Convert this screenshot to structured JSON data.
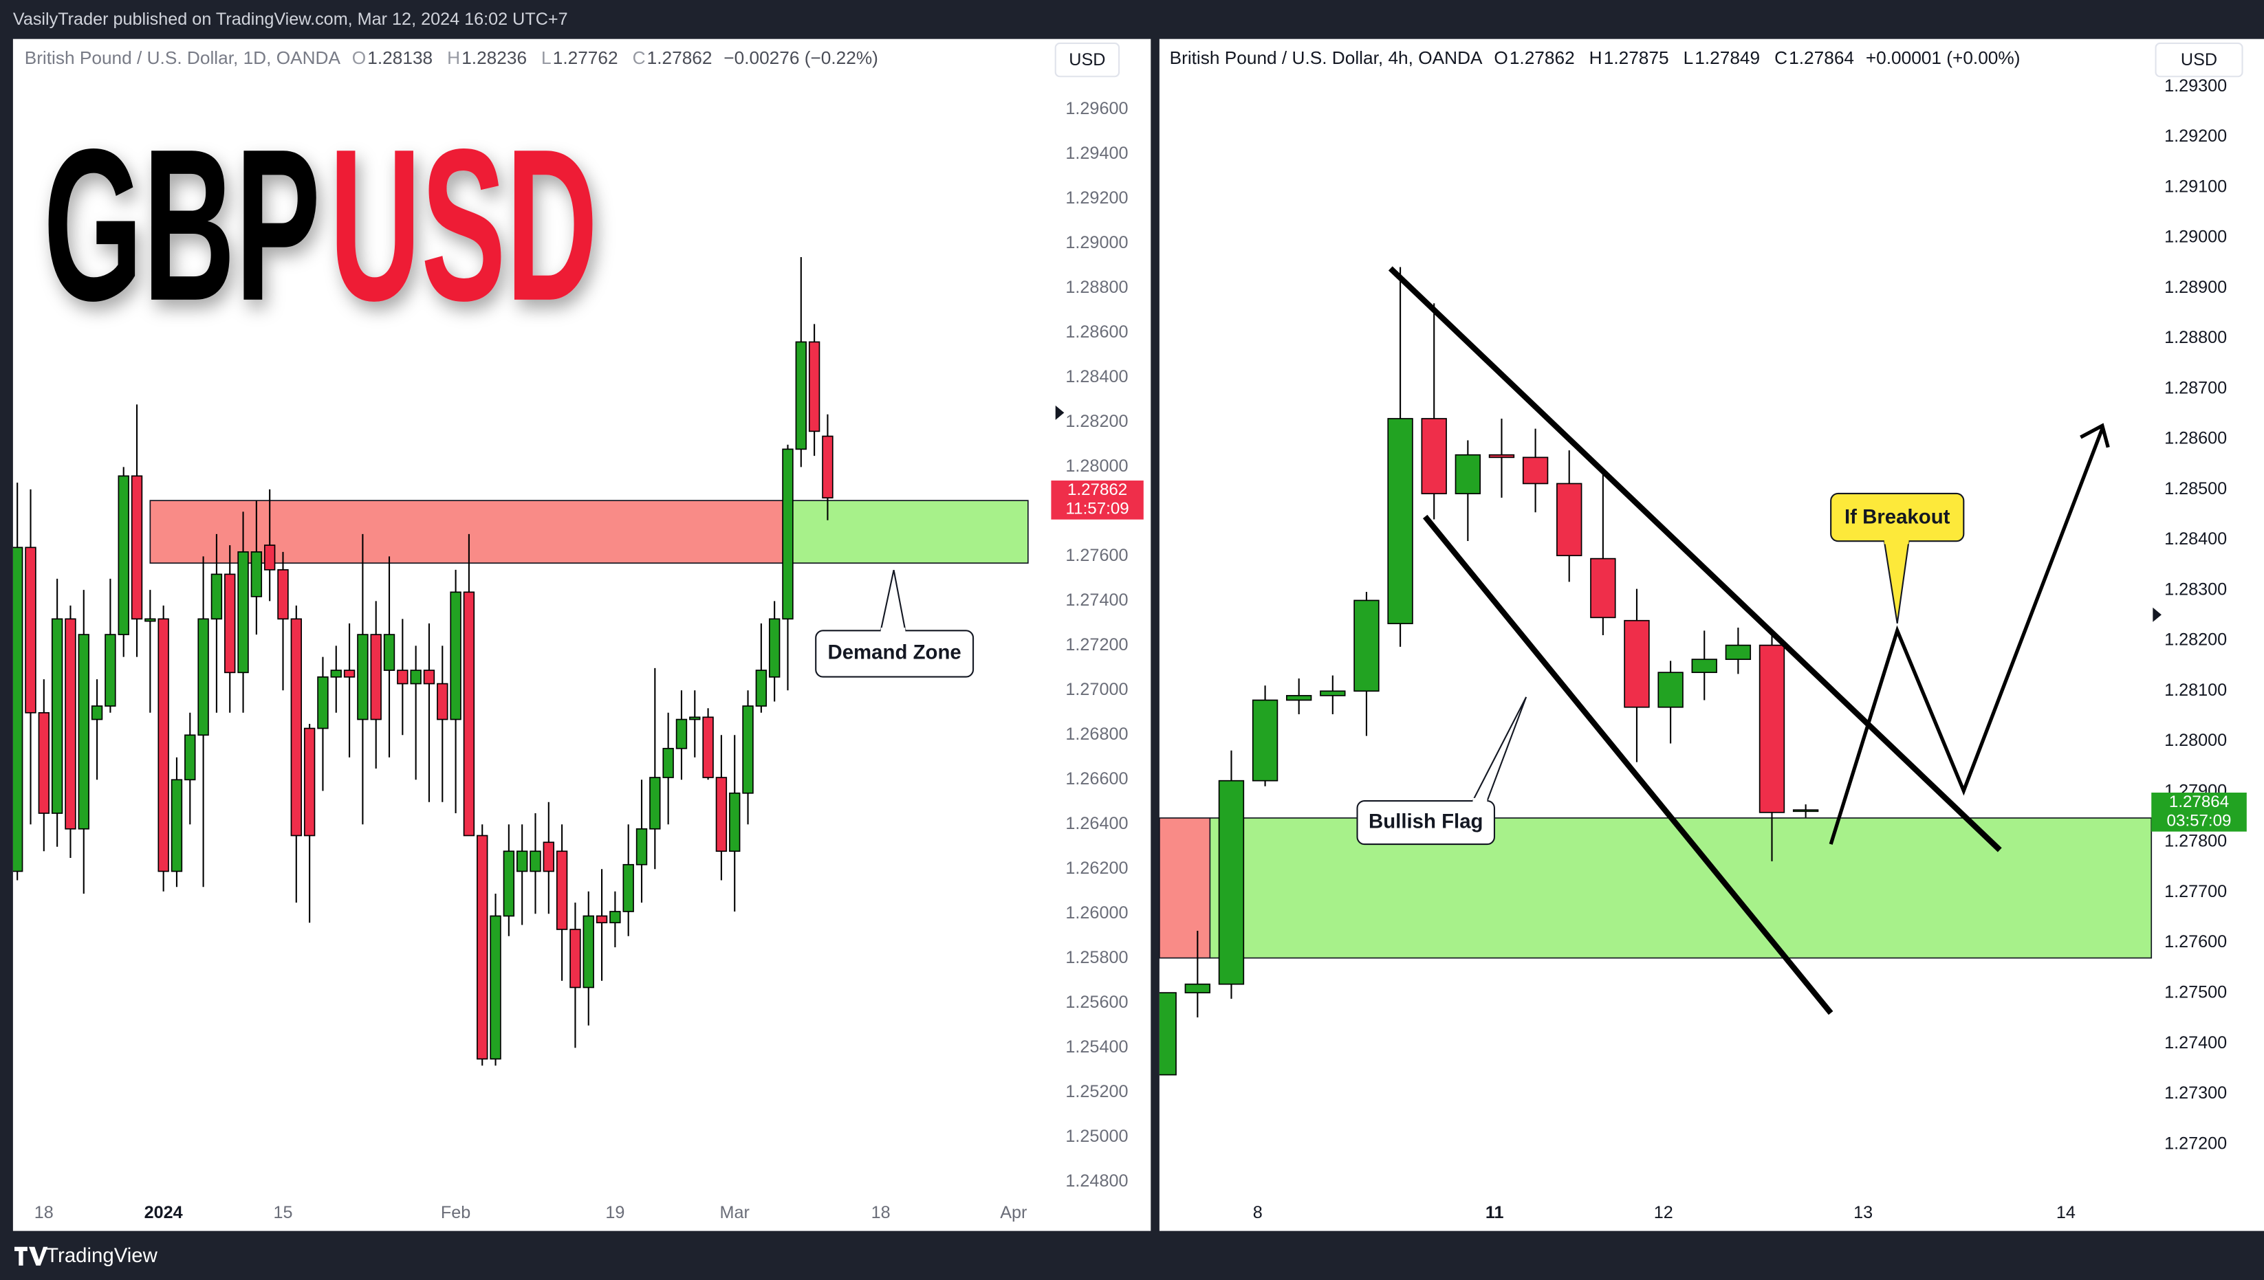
{
  "header": "VasilyTrader published on TradingView.com, Mar 12, 2024 16:02 UTC+7",
  "footer": "TradingView",
  "title": {
    "left": "GBP",
    "right": "USD"
  },
  "annotations": {
    "demand_zone": "Demand Zone",
    "bullish_flag": "Bullish Flag",
    "if_breakout": "If Breakout"
  },
  "chart_data": [
    {
      "type": "candlestick",
      "symbol": "British Pound / U.S. Dollar, 1D, OANDA",
      "currency": "USD",
      "ohlc_labels": [
        "O",
        "H",
        "L",
        "C"
      ],
      "change": "−0.00276 (−0.22%)",
      "countdown": "11:57:09",
      "up_color": "#22a322",
      "down_color": "#ef2e4a",
      "zone": {
        "top": 1.2785,
        "bottom": 1.2757,
        "supply_color": "#f98b87",
        "demand_color": "#a7f18a"
      },
      "ylim": [
        1.2458,
        1.2991
      ],
      "yticks": [
        {
          "value": 1.296,
          "label": "1.29600"
        },
        {
          "value": 1.294,
          "label": "1.29400"
        },
        {
          "value": 1.292,
          "label": "1.29200"
        },
        {
          "value": 1.29,
          "label": "1.29000"
        },
        {
          "value": 1.288,
          "label": "1.28800"
        },
        {
          "value": 1.286,
          "label": "1.28600"
        },
        {
          "value": 1.284,
          "label": "1.28400"
        },
        {
          "value": 1.282,
          "label": "1.28200"
        },
        {
          "value": 1.28,
          "label": "1.28000"
        },
        {
          "value": 1.278,
          "label": "1.27800"
        },
        {
          "value": 1.276,
          "label": "1.27600"
        },
        {
          "value": 1.274,
          "label": "1.27400"
        },
        {
          "value": 1.272,
          "label": "1.27200"
        },
        {
          "value": 1.27,
          "label": "1.27000"
        },
        {
          "value": 1.268,
          "label": "1.26800"
        },
        {
          "value": 1.266,
          "label": "1.26600"
        },
        {
          "value": 1.264,
          "label": "1.26400"
        },
        {
          "value": 1.262,
          "label": "1.26200"
        },
        {
          "value": 1.26,
          "label": "1.26000"
        },
        {
          "value": 1.258,
          "label": "1.25800"
        },
        {
          "value": 1.256,
          "label": "1.25600"
        },
        {
          "value": 1.254,
          "label": "1.25400"
        },
        {
          "value": 1.252,
          "label": "1.25200"
        },
        {
          "value": 1.25,
          "label": "1.25000"
        },
        {
          "value": 1.248,
          "label": "1.24800"
        }
      ],
      "xticks": [
        {
          "value": 2,
          "label": "18"
        },
        {
          "value": 11,
          "label": "2024"
        },
        {
          "value": 20,
          "label": "15"
        },
        {
          "value": 33,
          "label": "Feb"
        },
        {
          "value": 45,
          "label": "19"
        },
        {
          "value": 54,
          "label": "Mar"
        },
        {
          "value": 65,
          "label": "18"
        },
        {
          "value": 75,
          "label": "Apr"
        }
      ],
      "bold_xtick": 1,
      "candles": [
        {
          "open": 1.2619,
          "high": 1.2793,
          "low": 1.2615,
          "close": 1.2764
        },
        {
          "open": 1.2764,
          "high": 1.279,
          "low": 1.264,
          "close": 1.269
        },
        {
          "open": 1.269,
          "high": 1.2705,
          "low": 1.2628,
          "close": 1.2645
        },
        {
          "open": 1.2645,
          "high": 1.275,
          "low": 1.263,
          "close": 1.2732
        },
        {
          "open": 1.2732,
          "high": 1.2738,
          "low": 1.2625,
          "close": 1.2638
        },
        {
          "open": 1.2638,
          "high": 1.2745,
          "low": 1.2609,
          "close": 1.2725
        },
        {
          "open": 1.2687,
          "high": 1.2705,
          "low": 1.266,
          "close": 1.2693
        },
        {
          "open": 1.2693,
          "high": 1.275,
          "low": 1.269,
          "close": 1.2725
        },
        {
          "open": 1.2725,
          "high": 1.28,
          "low": 1.2715,
          "close": 1.2796
        },
        {
          "open": 1.2796,
          "high": 1.2828,
          "low": 1.2715,
          "close": 1.2732
        },
        {
          "open": 1.2731,
          "high": 1.2745,
          "low": 1.269,
          "close": 1.2732
        },
        {
          "open": 1.2732,
          "high": 1.2738,
          "low": 1.261,
          "close": 1.2619
        },
        {
          "open": 1.2619,
          "high": 1.267,
          "low": 1.2612,
          "close": 1.266
        },
        {
          "open": 1.266,
          "high": 1.269,
          "low": 1.264,
          "close": 1.268
        },
        {
          "open": 1.268,
          "high": 1.276,
          "low": 1.2612,
          "close": 1.2732
        },
        {
          "open": 1.2732,
          "high": 1.277,
          "low": 1.269,
          "close": 1.2752
        },
        {
          "open": 1.2752,
          "high": 1.2765,
          "low": 1.269,
          "close": 1.2708
        },
        {
          "open": 1.2708,
          "high": 1.278,
          "low": 1.269,
          "close": 1.2762
        },
        {
          "open": 1.2742,
          "high": 1.2785,
          "low": 1.2725,
          "close": 1.2762
        },
        {
          "open": 1.2765,
          "high": 1.279,
          "low": 1.274,
          "close": 1.2754
        },
        {
          "open": 1.2754,
          "high": 1.2762,
          "low": 1.27,
          "close": 1.2732
        },
        {
          "open": 1.2732,
          "high": 1.2738,
          "low": 1.2605,
          "close": 1.2635
        },
        {
          "open": 1.2683,
          "high": 1.2685,
          "low": 1.2596,
          "close": 1.2635
        },
        {
          "open": 1.2683,
          "high": 1.2715,
          "low": 1.2655,
          "close": 1.2706
        },
        {
          "open": 1.2706,
          "high": 1.272,
          "low": 1.269,
          "close": 1.2709
        },
        {
          "open": 1.2709,
          "high": 1.273,
          "low": 1.267,
          "close": 1.2706
        },
        {
          "open": 1.2687,
          "high": 1.277,
          "low": 1.264,
          "close": 1.2725
        },
        {
          "open": 1.2725,
          "high": 1.274,
          "low": 1.2665,
          "close": 1.2687
        },
        {
          "open": 1.2709,
          "high": 1.276,
          "low": 1.267,
          "close": 1.2725
        },
        {
          "open": 1.2709,
          "high": 1.2732,
          "low": 1.268,
          "close": 1.2703
        },
        {
          "open": 1.2703,
          "high": 1.272,
          "low": 1.266,
          "close": 1.2709
        },
        {
          "open": 1.2709,
          "high": 1.273,
          "low": 1.265,
          "close": 1.2703
        },
        {
          "open": 1.2703,
          "high": 1.272,
          "low": 1.265,
          "close": 1.2687
        },
        {
          "open": 1.2687,
          "high": 1.2754,
          "low": 1.2645,
          "close": 1.2744
        },
        {
          "open": 1.2744,
          "high": 1.277,
          "low": 1.2635,
          "close": 1.2635
        },
        {
          "open": 1.2635,
          "high": 1.264,
          "low": 1.2532,
          "close": 1.2535
        },
        {
          "open": 1.2535,
          "high": 1.2609,
          "low": 1.2532,
          "close": 1.2599
        },
        {
          "open": 1.2599,
          "high": 1.264,
          "low": 1.259,
          "close": 1.2628
        },
        {
          "open": 1.2619,
          "high": 1.264,
          "low": 1.2595,
          "close": 1.2628
        },
        {
          "open": 1.2619,
          "high": 1.2645,
          "low": 1.26,
          "close": 1.2628
        },
        {
          "open": 1.2632,
          "high": 1.265,
          "low": 1.26,
          "close": 1.2619
        },
        {
          "open": 1.2628,
          "high": 1.264,
          "low": 1.257,
          "close": 1.2593
        },
        {
          "open": 1.2593,
          "high": 1.2605,
          "low": 1.254,
          "close": 1.2567
        },
        {
          "open": 1.2567,
          "high": 1.261,
          "low": 1.255,
          "close": 1.2599
        },
        {
          "open": 1.2599,
          "high": 1.262,
          "low": 1.257,
          "close": 1.2596
        },
        {
          "open": 1.2596,
          "high": 1.261,
          "low": 1.2585,
          "close": 1.2601
        },
        {
          "open": 1.2601,
          "high": 1.264,
          "low": 1.259,
          "close": 1.2622
        },
        {
          "open": 1.2622,
          "high": 1.266,
          "low": 1.2605,
          "close": 1.2638
        },
        {
          "open": 1.2638,
          "high": 1.271,
          "low": 1.262,
          "close": 1.2661
        },
        {
          "open": 1.2661,
          "high": 1.269,
          "low": 1.264,
          "close": 1.2674
        },
        {
          "open": 1.2674,
          "high": 1.27,
          "low": 1.266,
          "close": 1.2687
        },
        {
          "open": 1.2687,
          "high": 1.27,
          "low": 1.267,
          "close": 1.2688
        },
        {
          "open": 1.2688,
          "high": 1.2692,
          "low": 1.266,
          "close": 1.2661
        },
        {
          "open": 1.2661,
          "high": 1.268,
          "low": 1.2615,
          "close": 1.2628
        },
        {
          "open": 1.2628,
          "high": 1.268,
          "low": 1.2601,
          "close": 1.2654
        },
        {
          "open": 1.2654,
          "high": 1.27,
          "low": 1.264,
          "close": 1.2693
        },
        {
          "open": 1.2693,
          "high": 1.273,
          "low": 1.269,
          "close": 1.2709
        },
        {
          "open": 1.2706,
          "high": 1.274,
          "low": 1.2695,
          "close": 1.2732
        },
        {
          "open": 1.2732,
          "high": 1.281,
          "low": 1.27,
          "close": 1.2808
        },
        {
          "open": 1.2808,
          "high": 1.2894,
          "low": 1.28,
          "close": 1.2856
        },
        {
          "open": 1.2856,
          "high": 1.2864,
          "low": 1.2805,
          "close": 1.2816
        },
        {
          "open": 1.28138,
          "high": 1.28236,
          "low": 1.27762,
          "close": 1.27862
        }
      ]
    },
    {
      "type": "candlestick",
      "symbol": "British Pound / U.S. Dollar, 4h, OANDA",
      "currency": "USD",
      "ohlc_labels": [
        "O",
        "H",
        "L",
        "C"
      ],
      "change": "+0.00001 (+0.00%)",
      "countdown": "03:57:09",
      "up_color": "#22a322",
      "down_color": "#ef2e4a",
      "zone": {
        "top": 1.27848,
        "bottom": 1.2757,
        "supply_color": "#f98b87",
        "demand_color": "#a7f18a"
      },
      "ylim": [
        1.27028,
        1.29392
      ],
      "yticks": [
        {
          "value": 1.293,
          "label": "1.29300"
        },
        {
          "value": 1.292,
          "label": "1.29200"
        },
        {
          "value": 1.291,
          "label": "1.29100"
        },
        {
          "value": 1.29,
          "label": "1.29000"
        },
        {
          "value": 1.289,
          "label": "1.28900"
        },
        {
          "value": 1.288,
          "label": "1.28800"
        },
        {
          "value": 1.287,
          "label": "1.28700"
        },
        {
          "value": 1.286,
          "label": "1.28600"
        },
        {
          "value": 1.285,
          "label": "1.28500"
        },
        {
          "value": 1.284,
          "label": "1.28400"
        },
        {
          "value": 1.283,
          "label": "1.28300"
        },
        {
          "value": 1.282,
          "label": "1.28200"
        },
        {
          "value": 1.281,
          "label": "1.28100"
        },
        {
          "value": 1.28,
          "label": "1.28000"
        },
        {
          "value": 1.279,
          "label": "1.27900"
        },
        {
          "value": 1.278,
          "label": "1.27800"
        },
        {
          "value": 1.277,
          "label": "1.27700"
        },
        {
          "value": 1.276,
          "label": "1.27600"
        },
        {
          "value": 1.275,
          "label": "1.27500"
        },
        {
          "value": 1.274,
          "label": "1.27400"
        },
        {
          "value": 1.273,
          "label": "1.27300"
        },
        {
          "value": 1.272,
          "label": "1.27200"
        }
      ],
      "xticks": [
        {
          "value": 2.78,
          "label": "8"
        },
        {
          "value": 9.79,
          "label": "11"
        },
        {
          "value": 14.79,
          "label": "12"
        },
        {
          "value": 20.7,
          "label": "13"
        },
        {
          "value": 26.7,
          "label": "14"
        }
      ],
      "bold_xtick": 1,
      "candles": [
        {
          "open": 1.27338,
          "high": 1.27501,
          "low": 1.27338,
          "close": 1.27501
        },
        {
          "open": 1.27501,
          "high": 1.27624,
          "low": 1.27452,
          "close": 1.27518
        },
        {
          "open": 1.27518,
          "high": 1.27982,
          "low": 1.27489,
          "close": 1.27922
        },
        {
          "open": 1.27922,
          "high": 1.28111,
          "low": 1.27911,
          "close": 1.28082
        },
        {
          "open": 1.28082,
          "high": 1.28125,
          "low": 1.28054,
          "close": 1.28091
        },
        {
          "open": 1.28091,
          "high": 1.28131,
          "low": 1.28054,
          "close": 1.281
        },
        {
          "open": 1.281,
          "high": 1.28297,
          "low": 1.28011,
          "close": 1.2828
        },
        {
          "open": 1.28234,
          "high": 1.28942,
          "low": 1.28188,
          "close": 1.28641
        },
        {
          "open": 1.28641,
          "high": 1.2887,
          "low": 1.28441,
          "close": 1.28492
        },
        {
          "open": 1.28492,
          "high": 1.28598,
          "low": 1.28398,
          "close": 1.28569
        },
        {
          "open": 1.28569,
          "high": 1.28641,
          "low": 1.28484,
          "close": 1.28564
        },
        {
          "open": 1.28564,
          "high": 1.28621,
          "low": 1.28455,
          "close": 1.28512
        },
        {
          "open": 1.28512,
          "high": 1.28578,
          "low": 1.28317,
          "close": 1.28369
        },
        {
          "open": 1.28363,
          "high": 1.28541,
          "low": 1.28211,
          "close": 1.28246
        },
        {
          "open": 1.2824,
          "high": 1.28303,
          "low": 1.27959,
          "close": 1.28068
        },
        {
          "open": 1.28068,
          "high": 1.2816,
          "low": 1.27996,
          "close": 1.28137
        },
        {
          "open": 1.28137,
          "high": 1.2822,
          "low": 1.28082,
          "close": 1.28163
        },
        {
          "open": 1.28163,
          "high": 1.28226,
          "low": 1.28134,
          "close": 1.28191
        },
        {
          "open": 1.28191,
          "high": 1.2822,
          "low": 1.27762,
          "close": 1.27859
        },
        {
          "open": 1.27862,
          "high": 1.27875,
          "low": 1.27849,
          "close": 1.27864
        }
      ]
    }
  ]
}
